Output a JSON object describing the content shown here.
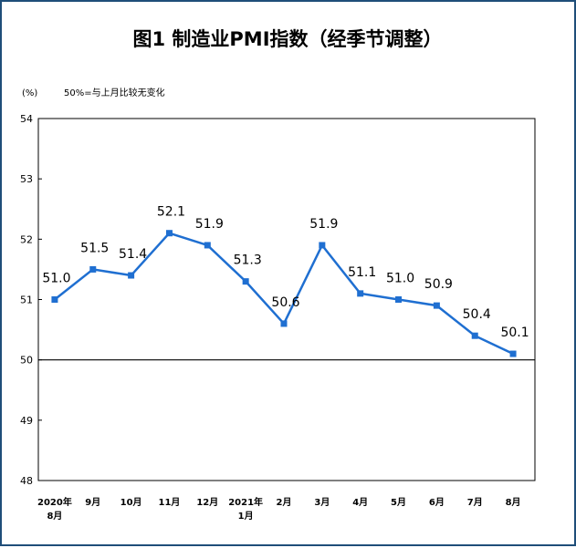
{
  "chart_data": {
    "type": "line",
    "title": "图1 制造业PMI指数（经季节调整）",
    "ylabel": "(%)",
    "note": "50%=与上月比较无变化",
    "ylim": [
      48,
      54
    ],
    "yticks": [
      "54",
      "53",
      "52",
      "51",
      "50",
      "49",
      "48"
    ],
    "baseline": 50,
    "categories": [
      [
        "2020年",
        "8月"
      ],
      [
        "9月"
      ],
      [
        "10月"
      ],
      [
        "11月"
      ],
      [
        "12月"
      ],
      [
        "2021年",
        "1月"
      ],
      [
        "2月"
      ],
      [
        "3月"
      ],
      [
        "4月"
      ],
      [
        "5月"
      ],
      [
        "6月"
      ],
      [
        "7月"
      ],
      [
        "8月"
      ]
    ],
    "series": [
      {
        "values": [
          51.0,
          51.5,
          51.4,
          52.1,
          51.9,
          51.3,
          50.6,
          51.9,
          51.1,
          51.0,
          50.9,
          50.4,
          50.1
        ],
        "labels": [
          "51.0",
          "51.5",
          "51.4",
          "52.1",
          "51.9",
          "51.3",
          "50.6",
          "51.9",
          "51.1",
          "51.0",
          "50.9",
          "50.4",
          "50.1"
        ],
        "color": "#1f6fd1"
      }
    ],
    "grid": false,
    "legend": "none"
  }
}
